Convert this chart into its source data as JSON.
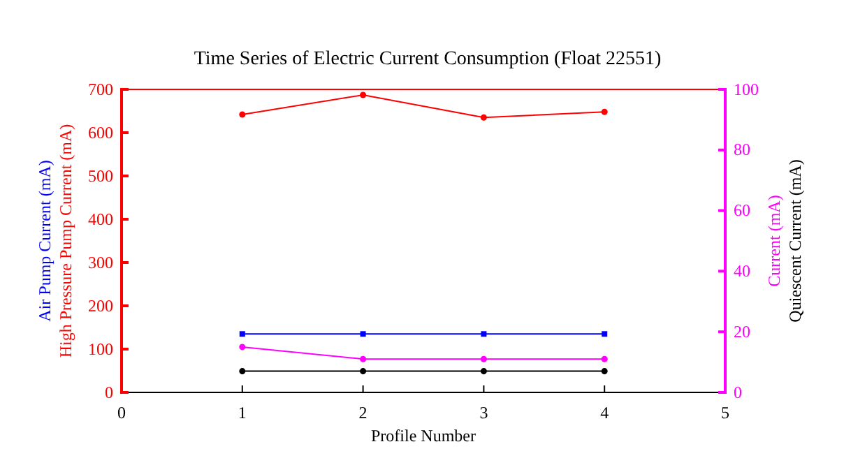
{
  "chart_data": {
    "type": "line",
    "title": "Time Series of Electric Current Consumption (Float 22551)",
    "xlabel": "Profile Number",
    "ylabel": "High Pressure Pump Current (mA)",
    "y2label": "Current (mA)",
    "annotations": [
      "Air Pump Current (mA)",
      "Quiescent Current (mA)"
    ],
    "x": [
      1,
      2,
      3,
      4
    ],
    "xlim": [
      0,
      5
    ],
    "xticks": [
      0,
      1,
      2,
      3,
      4,
      5
    ],
    "ylim": [
      0,
      700
    ],
    "yticks": [
      0,
      100,
      200,
      300,
      400,
      500,
      600,
      700
    ],
    "y2lim": [
      0,
      100
    ],
    "y2ticks": [
      0,
      20,
      40,
      60,
      80,
      100
    ],
    "grid": false,
    "line_style": "solid",
    "series": [
      {
        "color": "#ff0000",
        "axis": "y",
        "marker": "circle",
        "values": [
          642,
          687,
          635,
          648
        ]
      },
      {
        "color": "#0000ff",
        "axis": "y",
        "marker": "square",
        "values": [
          135,
          135,
          135,
          135
        ]
      },
      {
        "color": "#ff00ff",
        "axis": "y2",
        "marker": "circle",
        "values": [
          15,
          11,
          11,
          11
        ]
      },
      {
        "color": "#000000",
        "axis": "y2",
        "marker": "circle",
        "values": [
          7,
          7,
          7,
          7
        ]
      }
    ]
  }
}
